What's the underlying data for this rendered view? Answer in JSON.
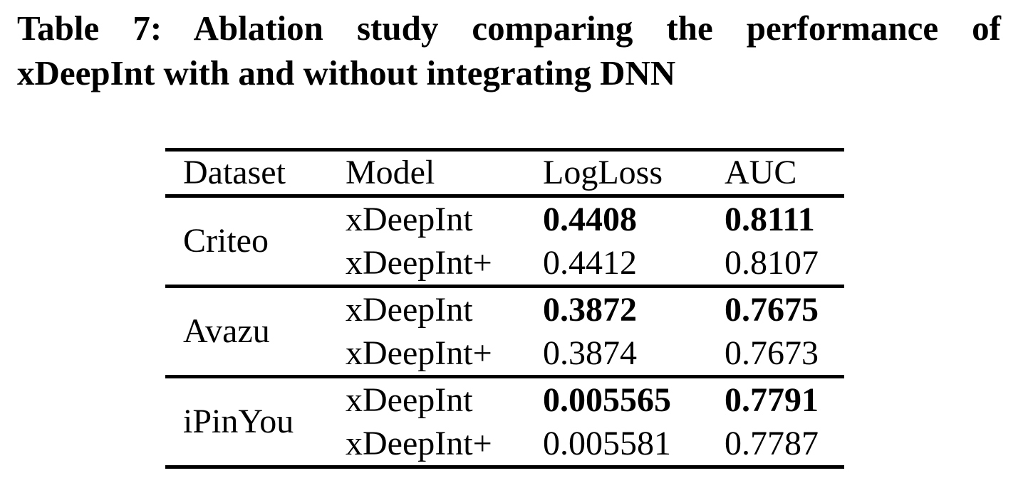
{
  "caption": {
    "line1": "Table 7: Ablation study comparing the performance of",
    "line2": "xDeepInt with and without integrating DNN",
    "full": "Table 7: Ablation study comparing the performance of xDeepInt with and without integrating DNN"
  },
  "table": {
    "columns": [
      "Dataset",
      "Model",
      "LogLoss",
      "AUC"
    ],
    "groups": [
      {
        "dataset": "Criteo",
        "rows": [
          {
            "model": "xDeepInt",
            "logloss": "0.4408",
            "auc": "0.8111",
            "best": true
          },
          {
            "model": "xDeepInt+",
            "logloss": "0.4412",
            "auc": "0.8107",
            "best": false
          }
        ]
      },
      {
        "dataset": "Avazu",
        "rows": [
          {
            "model": "xDeepInt",
            "logloss": "0.3872",
            "auc": "0.7675",
            "best": true
          },
          {
            "model": "xDeepInt+",
            "logloss": "0.3874",
            "auc": "0.7673",
            "best": false
          }
        ]
      },
      {
        "dataset": "iPinYou",
        "rows": [
          {
            "model": "xDeepInt",
            "logloss": "0.005565",
            "auc": "0.7791",
            "best": true
          },
          {
            "model": "xDeepInt+",
            "logloss": "0.005581",
            "auc": "0.7787",
            "best": false
          }
        ]
      }
    ]
  },
  "colors": {
    "background": "#ffffff",
    "text": "#000000",
    "rule": "#000000"
  }
}
